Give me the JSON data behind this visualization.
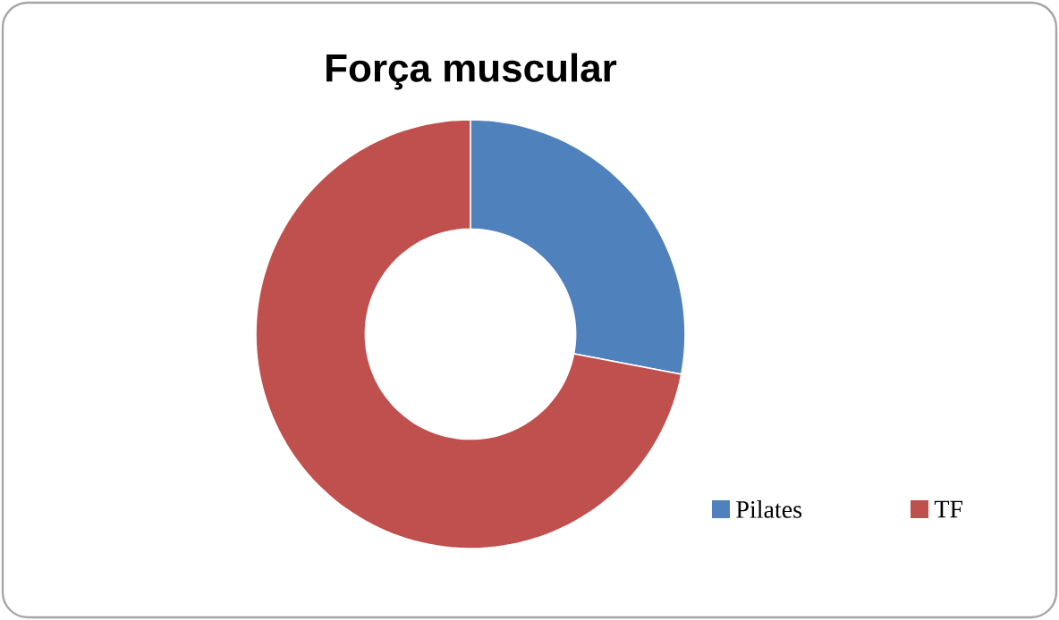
{
  "chart_data": {
    "type": "donut",
    "title": "Força muscular",
    "categories": [
      "Pilates",
      "TF"
    ],
    "values": [
      28,
      72
    ],
    "colors": [
      "#4f81bd",
      "#c0504d"
    ],
    "legend": "bottom right"
  }
}
